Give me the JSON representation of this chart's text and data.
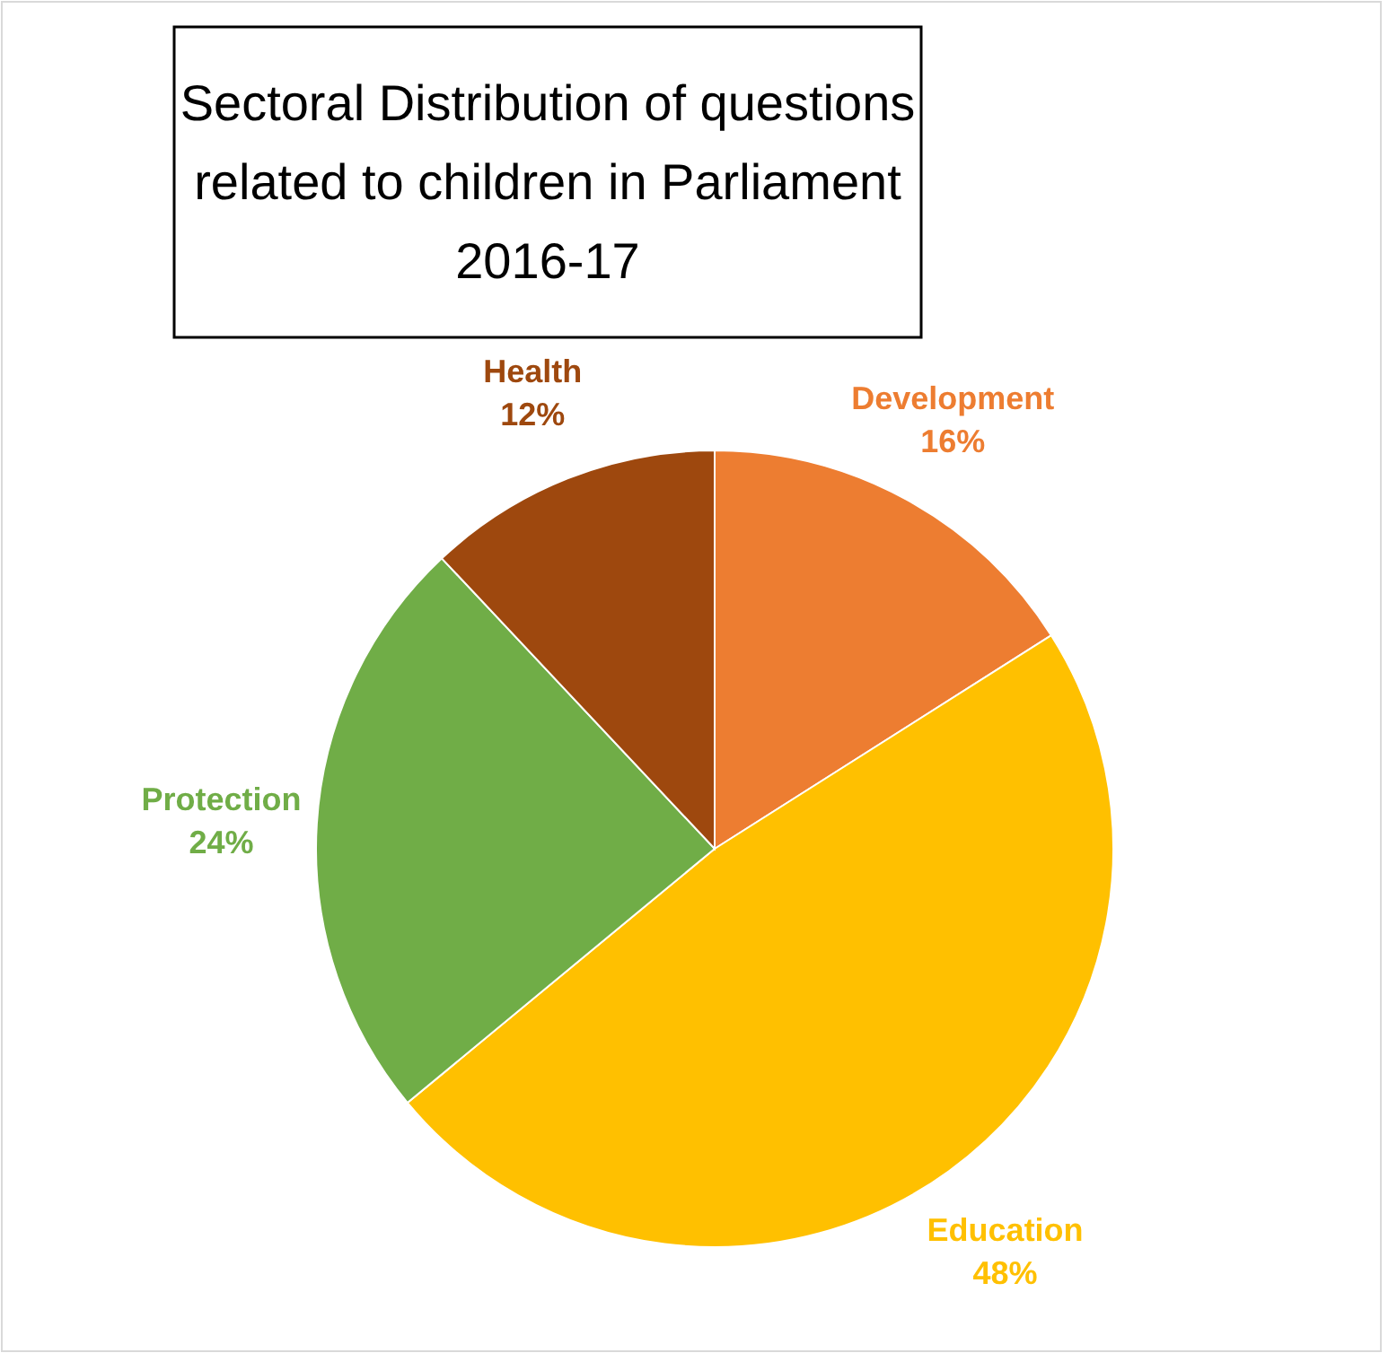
{
  "chart_data": {
    "type": "pie",
    "title": "Sectoral Distribution of questions related to children in Parliament 2016-17",
    "categories": [
      "Development",
      "Education",
      "Protection",
      "Health"
    ],
    "values": [
      16,
      48,
      24,
      12
    ],
    "colors": [
      "#ed7d31",
      "#ffc000",
      "#70ad47",
      "#9e480e"
    ],
    "value_labels": [
      "16%",
      "48%",
      "24%",
      "12%"
    ]
  }
}
